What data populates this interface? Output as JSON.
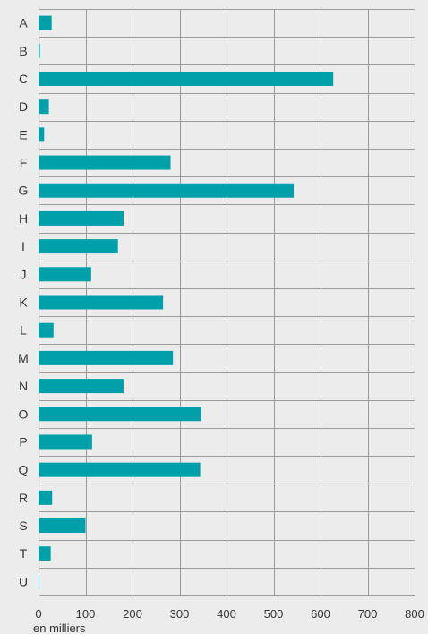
{
  "chart_data": {
    "type": "bar",
    "orientation": "horizontal",
    "categories": [
      "A",
      "B",
      "C",
      "D",
      "E",
      "F",
      "G",
      "H",
      "I",
      "J",
      "K",
      "L",
      "M",
      "N",
      "O",
      "P",
      "Q",
      "R",
      "S",
      "T",
      "U"
    ],
    "values": [
      28,
      3,
      627,
      22,
      12,
      281,
      543,
      181,
      169,
      112,
      265,
      32,
      286,
      181,
      346,
      114,
      344,
      29,
      100,
      26,
      1
    ],
    "title": "",
    "xlabel": "en milliers",
    "ylabel": "",
    "xlim": [
      0,
      800
    ],
    "xticks": [
      "0",
      "100",
      "200",
      "300",
      "400",
      "500",
      "600",
      "700",
      "800"
    ],
    "grid": true,
    "legend": "none",
    "colors": {
      "bar": "#00a0ab",
      "background": "#ececec",
      "grid": "#9a9a9a",
      "text": "#333333"
    }
  }
}
